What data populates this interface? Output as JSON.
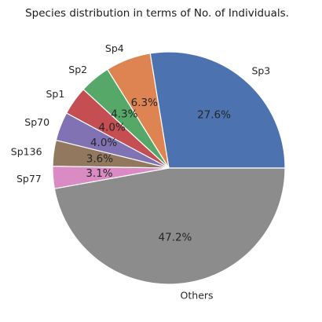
{
  "chart_data": {
    "type": "pie",
    "title": "Species distribution in terms of No. of Individuals.",
    "start_angle_deg": 0,
    "direction": "counterclockwise",
    "slices": [
      {
        "label": "Sp3",
        "value": 27.6,
        "pct_text": "27.6%",
        "color": "#4c72b0"
      },
      {
        "label": "Sp4",
        "value": 6.3,
        "pct_text": "6.3%",
        "color": "#dd8452"
      },
      {
        "label": "Sp2",
        "value": 4.3,
        "pct_text": "4.3%",
        "color": "#55a868"
      },
      {
        "label": "Sp1",
        "value": 4.0,
        "pct_text": "4.0%",
        "color": "#c44e52"
      },
      {
        "label": "Sp70",
        "value": 4.0,
        "pct_text": "4.0%",
        "color": "#8172b3"
      },
      {
        "label": "Sp136",
        "value": 3.6,
        "pct_text": "3.6%",
        "color": "#937860"
      },
      {
        "label": "Sp77",
        "value": 3.1,
        "pct_text": "3.1%",
        "color": "#da8bc3"
      },
      {
        "label": "Others",
        "value": 47.2,
        "pct_text": "47.2%",
        "color": "#8c8c8c"
      }
    ]
  }
}
